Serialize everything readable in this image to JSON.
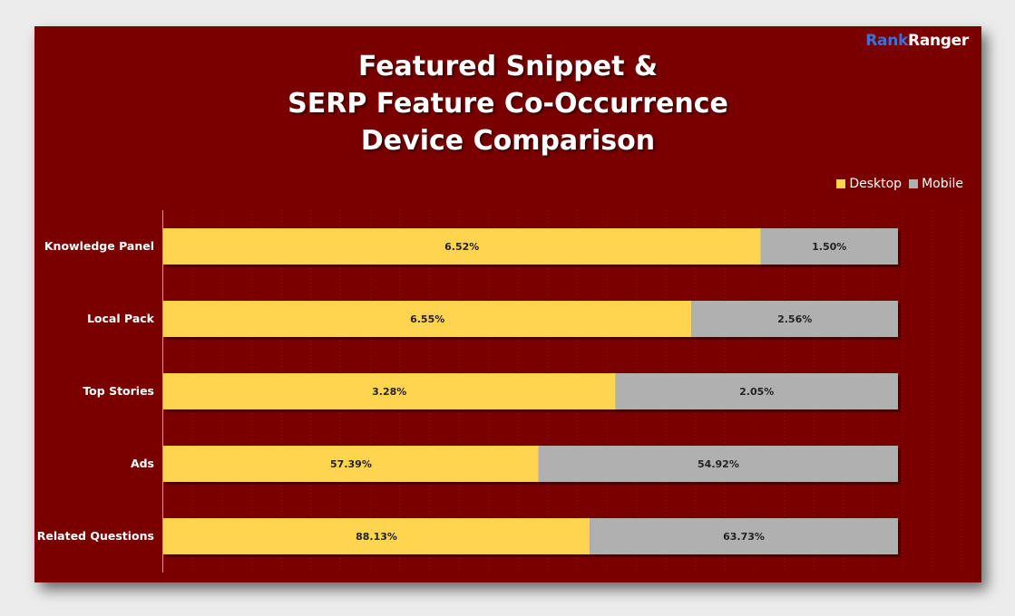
{
  "logo": {
    "part1": "Rank",
    "part2": "Ranger"
  },
  "title_lines": [
    "Featured Snippet &",
    "SERP Feature Co-Occurrence",
    "Device Comparison"
  ],
  "colors": {
    "background": "#7a0000",
    "desktop": "#ffd54f",
    "mobile": "#b0b0b0",
    "text": "#ffffff"
  },
  "chart_data": {
    "type": "bar",
    "orientation": "horizontal",
    "stacked": "100%",
    "title": "Featured Snippet & SERP Feature Co-Occurrence Device Comparison",
    "categories": [
      "Knowledge Panel",
      "Local Pack",
      "Top Stories",
      "Ads",
      "Related Questions"
    ],
    "series": [
      {
        "name": "Desktop",
        "values": [
          6.52,
          6.55,
          3.28,
          57.39,
          88.13
        ],
        "labels": [
          "6.52%",
          "6.55%",
          "3.28%",
          "57.39%",
          "88.13%"
        ]
      },
      {
        "name": "Mobile",
        "values": [
          1.5,
          2.56,
          2.05,
          54.92,
          63.73
        ],
        "labels": [
          "1.50%",
          "2.56%",
          "2.05%",
          "54.92%",
          "63.73%"
        ]
      }
    ],
    "legend": "top-right",
    "grid": "vertical dotted"
  }
}
